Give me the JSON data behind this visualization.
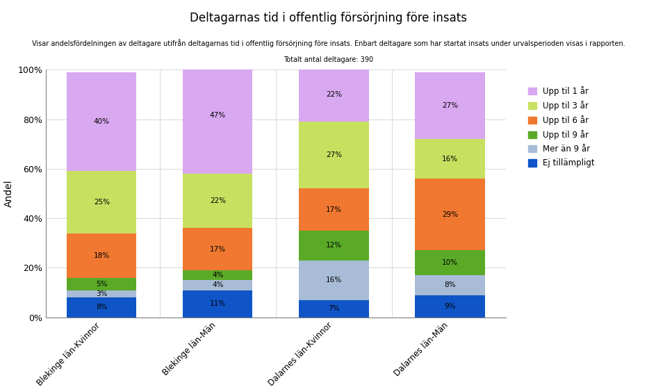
{
  "title": "Deltagarnas tid i offentlig försörjning före insats",
  "subtitle1": "Visar andelsfördelningen av deltagare utifrån deltagarnas tid i offentlig försörjning före insats. Enbart deltagare som har startat insats under urvalsperioden visas i rapporten.",
  "subtitle2": "Totalt antal deltagare: 390",
  "ylabel": "Andel",
  "categories": [
    "Blekinge län-Kvinnor",
    "Blekinge län-Män",
    "Dalarnes län-Kvinnor",
    "Dalarnes län-Män"
  ],
  "legend_labels": [
    "Upp til 1 år",
    "Upp til 3 år",
    "Upp til 6 år",
    "Upp til 9 år",
    "Mer än 9 år",
    "Ej tillämpligt"
  ],
  "colors_map": {
    "Upp til 1 år": "#d8a8f0",
    "Upp til 3 år": "#c8e060",
    "Upp til 6 år": "#f07830",
    "Upp til 9 år": "#5aaa28",
    "Mer än 9 år": "#a8bcd8",
    "Ej tillämpligt": "#1055c8"
  },
  "data": {
    "Ej tillämpligt": [
      8,
      11,
      7,
      9
    ],
    "Mer än 9 år": [
      3,
      4,
      16,
      8
    ],
    "Upp til 9 år": [
      5,
      4,
      12,
      10
    ],
    "Upp til 6 år": [
      18,
      17,
      17,
      29
    ],
    "Upp til 3 år": [
      25,
      22,
      27,
      16
    ],
    "Upp til 1 år": [
      40,
      47,
      22,
      27
    ]
  },
  "bar_labels": {
    "Ej tillämpligt": [
      "8%",
      "11%",
      "7%",
      "9%"
    ],
    "Mer än 9 år": [
      "3%",
      "4%",
      "16%",
      "8%"
    ],
    "Upp til 9 år": [
      "5%",
      "4%",
      "12%",
      "10%"
    ],
    "Upp til 6 år": [
      "18%",
      "17%",
      "17%",
      "29%"
    ],
    "Upp til 3 år": [
      "25%",
      "22%",
      "27%",
      "16%"
    ],
    "Upp til 1 år": [
      "40%",
      "47%",
      "22%",
      "27%"
    ]
  },
  "stack_order": [
    "Ej tillämpligt",
    "Mer än 9 år",
    "Upp til 9 år",
    "Upp til 6 år",
    "Upp til 3 år",
    "Upp til 1 år"
  ],
  "legend_order": [
    "Upp til 1 år",
    "Upp til 3 år",
    "Upp til 6 år",
    "Upp til 9 år",
    "Mer än 9 år",
    "Ej tillämpligt"
  ],
  "yticks": [
    0,
    20,
    40,
    60,
    80,
    100
  ],
  "ytick_labels": [
    "0%",
    "20%",
    "40%",
    "60%",
    "80%",
    "100%"
  ],
  "bar_width": 0.6,
  "figsize": [
    9.45,
    5.57
  ],
  "dpi": 100
}
